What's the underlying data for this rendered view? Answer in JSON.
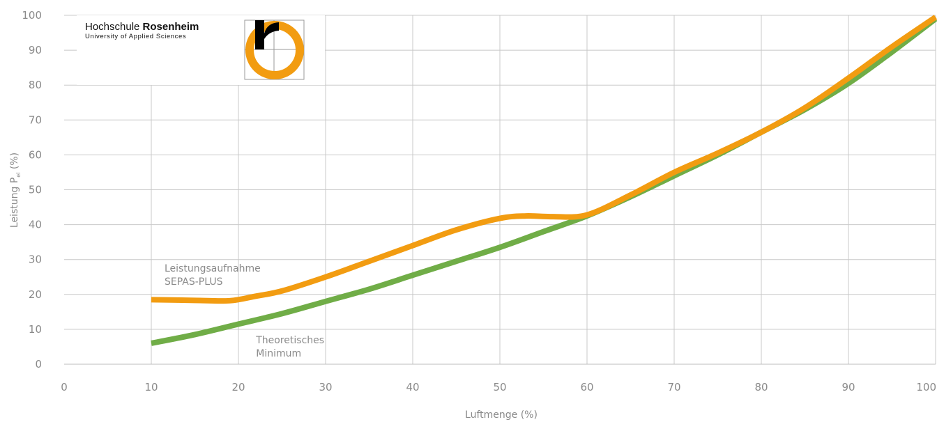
{
  "chart_data": {
    "type": "line",
    "xlabel": "Luftmenge (%)",
    "ylabel": {
      "prefix": "Leistung P",
      "subscript": "el",
      "suffix": " (%)"
    },
    "xlim": [
      0,
      100
    ],
    "ylim": [
      0,
      100
    ],
    "x_ticks": [
      0,
      10,
      20,
      30,
      40,
      50,
      60,
      70,
      80,
      90,
      100
    ],
    "y_ticks": [
      0,
      10,
      20,
      30,
      40,
      50,
      60,
      70,
      80,
      90,
      100
    ],
    "grid": true,
    "series": [
      {
        "color": "#70ad47",
        "x": [
          10,
          15,
          20,
          25,
          30,
          35,
          40,
          45,
          50,
          55,
          60,
          65,
          70,
          75,
          80,
          85,
          90,
          95,
          100
        ],
        "y": [
          6,
          8.5,
          11.5,
          14.5,
          18,
          21.5,
          25.5,
          29.5,
          33.5,
          38,
          42.5,
          48,
          54,
          60,
          66.5,
          73,
          80.5,
          89.5,
          99
        ]
      },
      {
        "color": "#f29c11",
        "x": [
          10,
          15,
          19,
          22,
          25,
          30,
          35,
          40,
          45,
          50,
          53,
          56,
          60,
          65,
          70,
          75,
          80,
          85,
          90,
          95,
          100
        ],
        "y": [
          18.5,
          18.3,
          18.2,
          19.5,
          21,
          25,
          29.5,
          34,
          38.5,
          41.8,
          42.5,
          42.3,
          42.8,
          48.5,
          55,
          60.5,
          66.5,
          73.5,
          82,
          91,
          99.5
        ]
      }
    ],
    "annotations": [
      {
        "lines": [
          "Leistungsaufnahme",
          "SEPAS-PLUS"
        ],
        "x": 10,
        "y": 26.5
      },
      {
        "lines": [
          "Theoretisches",
          "Minimum"
        ],
        "x": 20.5,
        "y": 6
      }
    ]
  },
  "logo": {
    "name_regular": "Hochschule ",
    "name_bold": "Rosenheim",
    "tagline": "University of Applied Sciences",
    "colors": {
      "ring": "#f29c11",
      "letter": "#000000"
    }
  }
}
